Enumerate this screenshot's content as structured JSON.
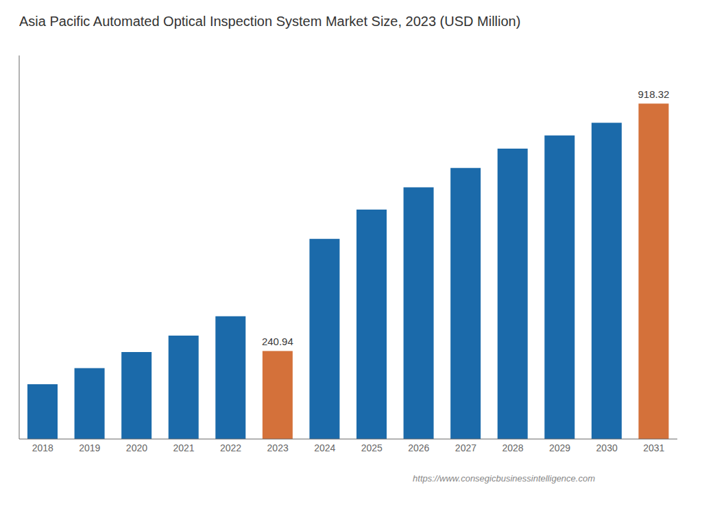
{
  "chart_data": {
    "type": "bar",
    "title": "Asia Pacific Automated Optical Inspection System Market Size, 2023 (USD Million)",
    "categories": [
      "2018",
      "2019",
      "2020",
      "2021",
      "2022",
      "2023",
      "2024",
      "2025",
      "2026",
      "2027",
      "2028",
      "2029",
      "2030",
      "2031"
    ],
    "values": [
      150,
      194,
      238,
      283,
      336,
      240.94,
      548,
      628,
      689,
      742,
      795,
      831,
      866,
      918.32
    ],
    "colors": [
      "#1b6aaa",
      "#1b6aaa",
      "#1b6aaa",
      "#1b6aaa",
      "#1b6aaa",
      "#d4713a",
      "#1b6aaa",
      "#1b6aaa",
      "#1b6aaa",
      "#1b6aaa",
      "#1b6aaa",
      "#1b6aaa",
      "#1b6aaa",
      "#d4713a"
    ],
    "ylim": [
      0,
      1050
    ],
    "grid": false,
    "tick_labels": "x",
    "annotations": [
      {
        "x": "2023",
        "y": 240.94,
        "text": "240.94"
      },
      {
        "x": "2031",
        "y": 918.32,
        "text": "918.32"
      },
      {
        "text": "https://www.consegicbusinessintelligence.com"
      }
    ]
  }
}
